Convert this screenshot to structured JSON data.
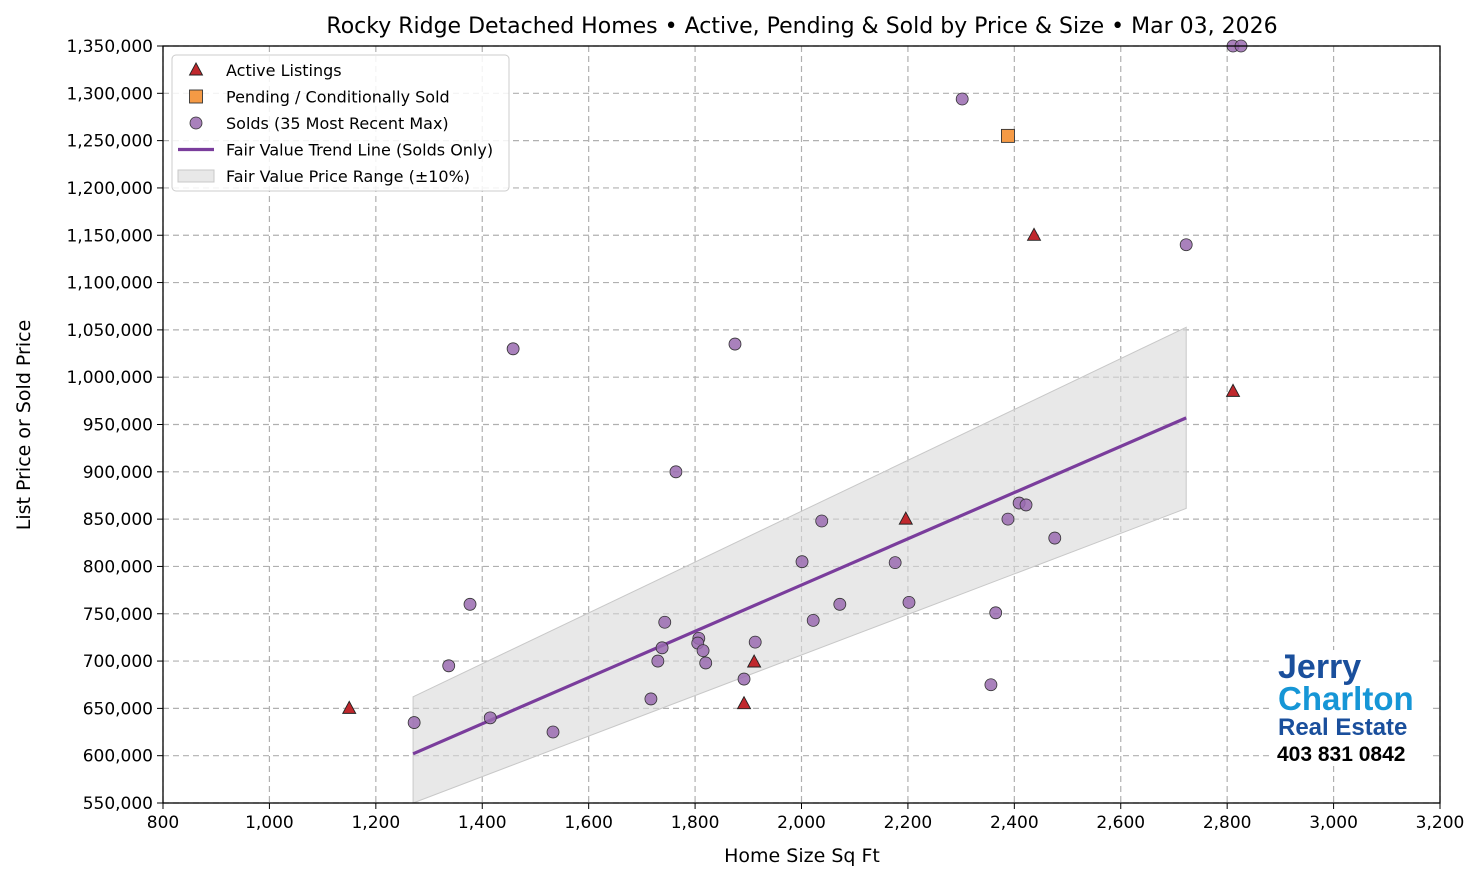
{
  "chart_data": {
    "type": "scatter",
    "title": "Rocky Ridge Detached Homes • Active, Pending & Sold by Price & Size • Mar 03, 2026",
    "xlabel": "Home Size Sq Ft",
    "ylabel": "List Price or Sold Price",
    "xlim": [
      800,
      3200
    ],
    "ylim": [
      550000,
      1350000
    ],
    "x_ticks": [
      800,
      1000,
      1200,
      1400,
      1600,
      1800,
      2000,
      2200,
      2400,
      2600,
      2800,
      3000,
      3200
    ],
    "x_tick_labels": [
      "800",
      "1,000",
      "1,200",
      "1,400",
      "1,600",
      "1,800",
      "2,000",
      "2,200",
      "2,400",
      "2,600",
      "2,800",
      "3,000",
      "3,200"
    ],
    "y_ticks": [
      550000,
      600000,
      650000,
      700000,
      750000,
      800000,
      850000,
      900000,
      950000,
      1000000,
      1050000,
      1100000,
      1150000,
      1200000,
      1250000,
      1300000,
      1350000
    ],
    "y_tick_labels": [
      "550,000",
      "600,000",
      "650,000",
      "700,000",
      "750,000",
      "800,000",
      "850,000",
      "900,000",
      "950,000",
      "1,000,000",
      "1,050,000",
      "1,100,000",
      "1,150,000",
      "1,200,000",
      "1,250,000",
      "1,300,000",
      "1,350,000"
    ],
    "grid": true,
    "legend_position": "top-left",
    "series": [
      {
        "name": "Active Listings",
        "marker": "triangle",
        "color": "#c0282d",
        "points": [
          [
            1150,
            650000
          ],
          [
            1892,
            655000
          ],
          [
            1911,
            699000
          ],
          [
            2196,
            850000
          ],
          [
            2437,
            1149900
          ],
          [
            2811,
            985000
          ]
        ]
      },
      {
        "name": "Pending / Conditionally Sold",
        "marker": "square",
        "color": "#f59a45",
        "points": [
          [
            2388,
            1255000
          ]
        ]
      },
      {
        "name": "Solds (35 Most Recent Max)",
        "marker": "circle",
        "color": "#9a6bb0",
        "points": [
          [
            2811,
            1350000
          ],
          [
            2826,
            1350000
          ],
          [
            2302,
            1294000
          ],
          [
            2723,
            1140000
          ],
          [
            1458,
            1030000
          ],
          [
            1875,
            1035000
          ],
          [
            1764,
            900000
          ],
          [
            2409,
            867000
          ],
          [
            2422,
            865000
          ],
          [
            2388,
            850000
          ],
          [
            2038,
            848000
          ],
          [
            2476,
            830000
          ],
          [
            2001,
            805000
          ],
          [
            2176,
            804000
          ],
          [
            2365,
            751000
          ],
          [
            2202,
            762000
          ],
          [
            2072,
            760000
          ],
          [
            2022,
            743000
          ],
          [
            1377,
            760000
          ],
          [
            1743,
            741000
          ],
          [
            1913,
            720000
          ],
          [
            1807,
            724000
          ],
          [
            1805,
            719000
          ],
          [
            1738,
            714000
          ],
          [
            1815,
            711000
          ],
          [
            1730,
            700000
          ],
          [
            1820,
            698000
          ],
          [
            1337,
            695000
          ],
          [
            1892,
            681000
          ],
          [
            2356,
            675000
          ],
          [
            1717,
            660000
          ],
          [
            1415,
            640000
          ],
          [
            1272,
            635000
          ],
          [
            1533,
            625000
          ]
        ]
      },
      {
        "name": "Fair Value Trend Line (Solds Only)",
        "type": "line",
        "color": "#7a3d9c",
        "points": [
          [
            1270,
            602000
          ],
          [
            2723,
            957000
          ]
        ]
      },
      {
        "name": "Fair Value Price Range (±10%)",
        "type": "band",
        "color": "#d9d9d9",
        "x": [
          1270,
          2723
        ],
        "lower": [
          541800,
          861300
        ],
        "upper": [
          662200,
          1052700
        ]
      }
    ]
  },
  "logo": {
    "line1": "Jerry",
    "line2": "Charlton",
    "line3": "Real Estate",
    "phone": "403 831 0842"
  }
}
